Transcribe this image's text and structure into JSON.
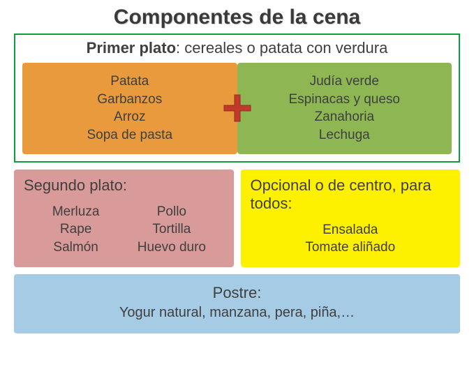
{
  "title": "Componentes de la cena",
  "colors": {
    "text": "#3f3f3f",
    "primerBorder": "#0f9e3e",
    "orange": "#e89a3c",
    "green": "#8eb754",
    "pink": "#d99a9a",
    "yellow": "#fef100",
    "blue": "#a6cbe4",
    "plusFill": "#c0392b",
    "plusStroke": "#913026"
  },
  "primer": {
    "label_bold": "Primer plato",
    "label_rest": ": cereales o patata con verdura",
    "left": [
      "Patata",
      "Garbanzos",
      "Arroz",
      "Sopa de pasta"
    ],
    "right": [
      "Judía verde",
      "Espinacas y queso",
      "Zanahoria",
      "Lechuga"
    ]
  },
  "segundo": {
    "label": "Segundo plato:",
    "col1": [
      "Merluza",
      "Rape",
      "Salmón"
    ],
    "col2": [
      "Pollo",
      "Tortilla",
      "Huevo duro"
    ]
  },
  "opcional": {
    "label": "Opcional o de centro, para todos:",
    "items": [
      "Ensalada",
      "Tomate aliñado"
    ]
  },
  "postre": {
    "label": "Postre:",
    "body": "Yogur natural, manzana, pera, piña,…"
  }
}
